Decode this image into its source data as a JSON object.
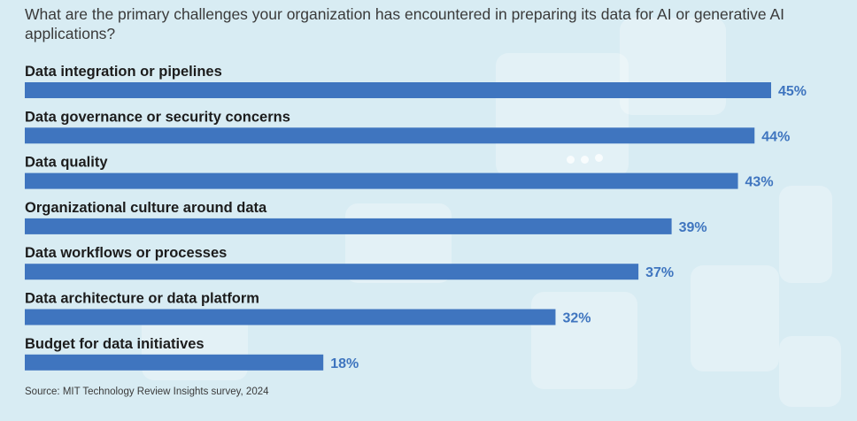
{
  "title": "What are the primary challenges your organization has encountered in preparing its data for AI or generative AI applications?",
  "source": "Source: MIT Technology Review Insights survey, 2024",
  "colors": {
    "bar": "#3f75bf",
    "value_label": "#3f75bf",
    "category_label": "#1c1c1c",
    "background": "#d8ecf3"
  },
  "chart_data": {
    "type": "bar",
    "orientation": "horizontal",
    "title": "What are the primary challenges your organization has encountered in preparing its data for AI or generative AI applications?",
    "categories": [
      "Data integration or pipelines",
      "Data governance or security concerns",
      "Data quality",
      "Organizational culture around data",
      "Data workflows or processes",
      "Data architecture or data platform",
      "Budget for data initiatives"
    ],
    "values": [
      45,
      44,
      43,
      39,
      37,
      32,
      18
    ],
    "value_labels": [
      "45%",
      "44%",
      "43%",
      "39%",
      "37%",
      "32%",
      "18%"
    ],
    "unit": "%",
    "xlim": [
      0,
      45
    ],
    "grid": false,
    "legend": "none"
  }
}
